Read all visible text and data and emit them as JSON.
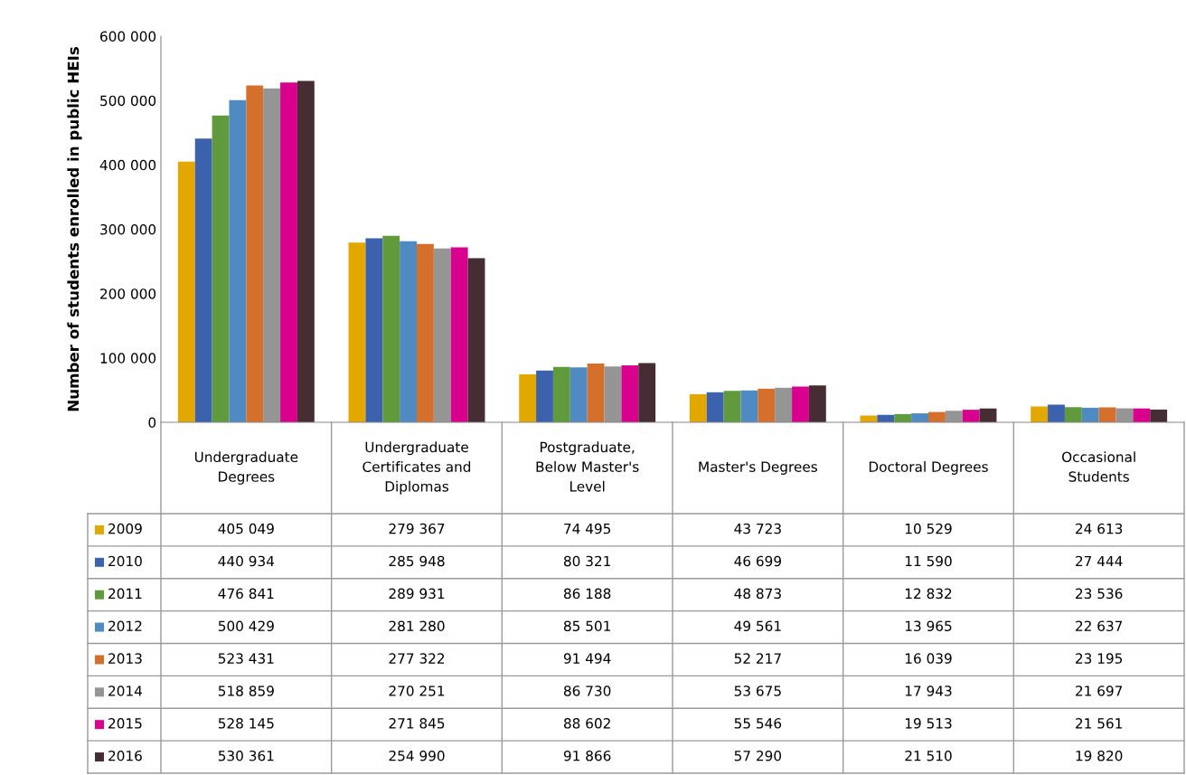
{
  "chart_data": {
    "type": "bar",
    "ylabel": "Number of students enrolled in public HEIs",
    "categories": [
      "Undergraduate\nDegrees",
      "Undergraduate\nCertificates and\nDiplomas",
      "Postgraduate,\nBelow Master's\nLevel",
      "Master's Degrees",
      "Doctoral Degrees",
      "Occasional\nStudents"
    ],
    "series": [
      {
        "name": "2009",
        "color": "#e3a800",
        "values": [
          405049,
          279367,
          74495,
          43723,
          10529,
          24613
        ],
        "value_labels": [
          "405 049",
          "279 367",
          "74 495",
          "43 723",
          "10 529",
          "24 613"
        ]
      },
      {
        "name": "2010",
        "color": "#3d62ad",
        "values": [
          440934,
          285948,
          80321,
          46699,
          11590,
          27444
        ],
        "value_labels": [
          "440 934",
          "285 948",
          "80 321",
          "46 699",
          "11 590",
          "27 444"
        ]
      },
      {
        "name": "2011",
        "color": "#619a3c",
        "values": [
          476841,
          289931,
          86188,
          48873,
          12832,
          23536
        ],
        "value_labels": [
          "476 841",
          "289 931",
          "86 188",
          "48 873",
          "12 832",
          "23 536"
        ]
      },
      {
        "name": "2012",
        "color": "#4f8bc2",
        "values": [
          500429,
          281280,
          85501,
          49561,
          13965,
          22637
        ],
        "value_labels": [
          "500 429",
          "281 280",
          "85 501",
          "49 561",
          "13 965",
          "22 637"
        ]
      },
      {
        "name": "2013",
        "color": "#d4702c",
        "values": [
          523431,
          277322,
          91494,
          52217,
          16039,
          23195
        ],
        "value_labels": [
          "523 431",
          "277 322",
          "91 494",
          "52 217",
          "16 039",
          "23 195"
        ]
      },
      {
        "name": "2014",
        "color": "#959595",
        "values": [
          518859,
          270251,
          86730,
          53675,
          17943,
          21697
        ],
        "value_labels": [
          "518 859",
          "270 251",
          "86 730",
          "53 675",
          "17 943",
          "21 697"
        ]
      },
      {
        "name": "2015",
        "color": "#d9008e",
        "values": [
          528145,
          271845,
          88602,
          55546,
          19513,
          21561
        ],
        "value_labels": [
          "528 145",
          "271 845",
          "88 602",
          "55 546",
          "19 513",
          "21 561"
        ]
      },
      {
        "name": "2016",
        "color": "#452d33",
        "values": [
          530361,
          254990,
          91866,
          57290,
          21510,
          19820
        ],
        "value_labels": [
          "530 361",
          "254 990",
          "91 866",
          "57 290",
          "21 510",
          "19 820"
        ]
      }
    ],
    "ylim": [
      0,
      600000
    ],
    "yticks": [
      {
        "value": 0,
        "label": "0"
      },
      {
        "value": 100000,
        "label": "100 000"
      },
      {
        "value": 200000,
        "label": "200 000"
      },
      {
        "value": 300000,
        "label": "300 000"
      },
      {
        "value": 400000,
        "label": "400 000"
      },
      {
        "value": 500000,
        "label": "500 000"
      },
      {
        "value": 600000,
        "label": "600 000"
      }
    ],
    "grid": false,
    "legend": "bottom"
  }
}
